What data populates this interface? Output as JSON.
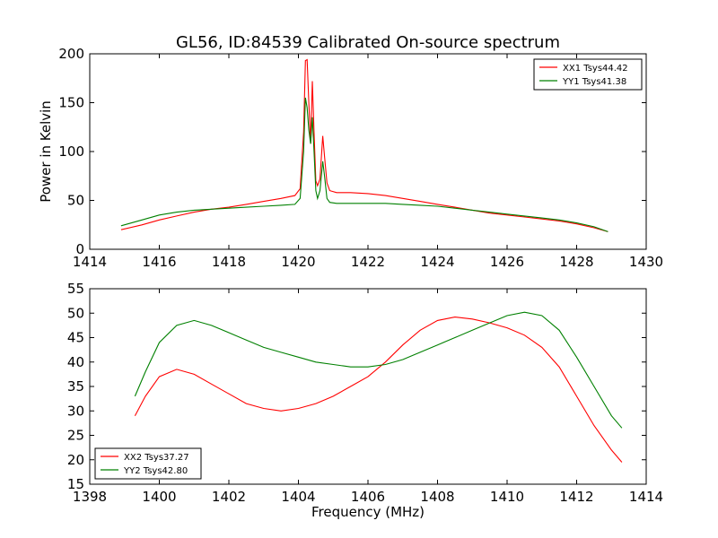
{
  "figure": {
    "title": "GL56, ID:84539 Calibrated On-source spectrum"
  },
  "chart_data": [
    {
      "type": "line",
      "title": "GL56, ID:84539 Calibrated On-source spectrum",
      "xlabel": "",
      "ylabel": "Power in Kelvin",
      "xlim": [
        1414,
        1430
      ],
      "ylim": [
        0,
        200
      ],
      "xticks": [
        1414,
        1416,
        1418,
        1420,
        1422,
        1424,
        1426,
        1428,
        1430
      ],
      "yticks": [
        0,
        50,
        100,
        150,
        200
      ],
      "grid": false,
      "legend": "top-right",
      "series": [
        {
          "name": "XX1 Tsys44.42",
          "color": "#ff0000",
          "x": [
            1414.9,
            1415.5,
            1416,
            1416.5,
            1417,
            1417.5,
            1418,
            1418.5,
            1419,
            1419.5,
            1419.9,
            1420.05,
            1420.15,
            1420.2,
            1420.25,
            1420.3,
            1420.35,
            1420.4,
            1420.45,
            1420.5,
            1420.55,
            1420.62,
            1420.7,
            1420.75,
            1420.82,
            1420.9,
            1421.1,
            1421.5,
            1422,
            1422.5,
            1423,
            1423.5,
            1424,
            1424.5,
            1425,
            1425.5,
            1426,
            1426.5,
            1427,
            1427.5,
            1428,
            1428.5,
            1428.9
          ],
          "values": [
            20,
            25,
            30,
            34,
            38,
            41,
            43,
            46,
            49,
            52,
            55,
            62,
            120,
            193,
            194,
            150,
            108,
            172,
            120,
            70,
            65,
            72,
            116,
            95,
            68,
            60,
            58,
            58,
            57,
            55,
            52,
            49,
            46,
            43,
            40,
            37,
            35,
            33,
            31,
            29,
            26,
            22,
            18
          ]
        },
        {
          "name": "YY1 Tsys41.38",
          "color": "#008000",
          "x": [
            1414.9,
            1415.5,
            1416,
            1416.5,
            1417,
            1417.5,
            1418,
            1418.5,
            1419,
            1419.5,
            1419.9,
            1420.05,
            1420.15,
            1420.2,
            1420.25,
            1420.3,
            1420.35,
            1420.4,
            1420.45,
            1420.5,
            1420.55,
            1420.62,
            1420.7,
            1420.75,
            1420.82,
            1420.9,
            1421.1,
            1421.5,
            1422,
            1422.5,
            1423,
            1423.5,
            1424,
            1424.5,
            1425,
            1425.5,
            1426,
            1426.5,
            1427,
            1427.5,
            1428,
            1428.5,
            1428.9
          ],
          "values": [
            24,
            30,
            35,
            38,
            40,
            41,
            42,
            43,
            44,
            45,
            46,
            52,
            100,
            155,
            145,
            122,
            108,
            135,
            100,
            60,
            52,
            60,
            90,
            75,
            52,
            48,
            47,
            47,
            47,
            47,
            46,
            45,
            44,
            42,
            40,
            38,
            36,
            34,
            32,
            30,
            27,
            23,
            18
          ]
        }
      ]
    },
    {
      "type": "line",
      "title": "",
      "xlabel": "Frequency (MHz)",
      "ylabel": "",
      "xlim": [
        1398,
        1414
      ],
      "ylim": [
        15,
        55
      ],
      "xticks": [
        1398,
        1400,
        1402,
        1404,
        1406,
        1408,
        1410,
        1412,
        1414
      ],
      "yticks": [
        15,
        20,
        25,
        30,
        35,
        40,
        45,
        50,
        55
      ],
      "grid": false,
      "legend": "bottom-left",
      "series": [
        {
          "name": "XX2 Tsys37.27",
          "color": "#ff0000",
          "x": [
            1399.3,
            1399.6,
            1400,
            1400.5,
            1401,
            1401.5,
            1402,
            1402.5,
            1403,
            1403.5,
            1404,
            1404.5,
            1405,
            1405.5,
            1406,
            1406.5,
            1407,
            1407.5,
            1408,
            1408.5,
            1409,
            1409.5,
            1410,
            1410.5,
            1411,
            1411.5,
            1412,
            1412.5,
            1413,
            1413.3
          ],
          "values": [
            29,
            33,
            37,
            38.5,
            37.5,
            35.5,
            33.5,
            31.5,
            30.5,
            30,
            30.5,
            31.5,
            33,
            35,
            37,
            40,
            43.5,
            46.5,
            48.5,
            49.2,
            48.8,
            48,
            47,
            45.5,
            43,
            39,
            33,
            27,
            22,
            19.5
          ]
        },
        {
          "name": "YY2 Tsys42.80",
          "color": "#008000",
          "x": [
            1399.3,
            1399.6,
            1400,
            1400.5,
            1401,
            1401.5,
            1402,
            1402.5,
            1403,
            1403.5,
            1404,
            1404.5,
            1405,
            1405.5,
            1406,
            1406.5,
            1407,
            1407.5,
            1408,
            1408.5,
            1409,
            1409.5,
            1410,
            1410.5,
            1411,
            1411.5,
            1412,
            1412.5,
            1413,
            1413.3
          ],
          "values": [
            33,
            38,
            44,
            47.5,
            48.5,
            47.5,
            46,
            44.5,
            43,
            42,
            41,
            40,
            39.5,
            39,
            39,
            39.5,
            40.5,
            42,
            43.5,
            45,
            46.5,
            48,
            49.5,
            50.2,
            49.5,
            46.5,
            41,
            35,
            29,
            26.5
          ]
        }
      ]
    }
  ]
}
